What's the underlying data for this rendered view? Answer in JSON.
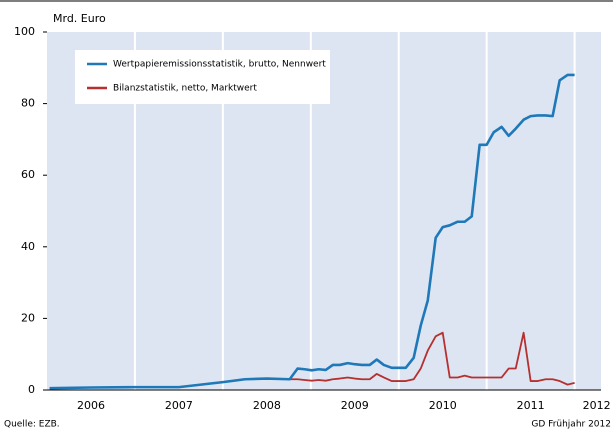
{
  "chart_data": {
    "type": "line",
    "ylabel": "Mrd. Euro",
    "source": "Quelle: EZB.",
    "footer": "GD Frühjahr 2012",
    "x": [
      2006.03,
      2006.5,
      2007.0,
      2007.5,
      2007.75,
      2008.0,
      2008.25,
      2008.5,
      2008.76,
      2008.85,
      2008.93,
      2009.01,
      2009.09,
      2009.17,
      2009.25,
      2009.33,
      2009.42,
      2009.5,
      2009.58,
      2009.67,
      2009.75,
      2009.83,
      2009.92,
      2010.0,
      2010.08,
      2010.17,
      2010.25,
      2010.33,
      2010.42,
      2010.5,
      2010.58,
      2010.67,
      2010.75,
      2010.83,
      2010.92,
      2011.0,
      2011.08,
      2011.17,
      2011.25,
      2011.33,
      2011.42,
      2011.5,
      2011.58,
      2011.67,
      2011.75,
      2011.83,
      2011.92,
      2012.0
    ],
    "series": [
      {
        "name": "Wertpapieremissionsstatistik, brutto, Nennwert",
        "color": "#1f78b8",
        "values": [
          0.5,
          0.7,
          0.8,
          0.8,
          1.5,
          2.2,
          3,
          3.2,
          3,
          6,
          5.8,
          5.5,
          5.8,
          5.6,
          7,
          7,
          7.5,
          7.2,
          7,
          7,
          8.5,
          7,
          6.2,
          6.2,
          6.2,
          9,
          18,
          25,
          42.5,
          45.5,
          46,
          47,
          47,
          48.5,
          68.5,
          68.5,
          72,
          73.5,
          71,
          73,
          75.5,
          76.5,
          76.7,
          76.7,
          76.5,
          86.5,
          88,
          88
        ]
      },
      {
        "name": "Bilanzstatistik, netto, Marktwert",
        "color": "#b5302f",
        "values": [
          0.5,
          0.7,
          0.8,
          0.8,
          1.5,
          2.2,
          3,
          3.2,
          3,
          3,
          2.8,
          2.6,
          2.8,
          2.6,
          3,
          3.2,
          3.5,
          3.2,
          3,
          3,
          4.5,
          3.5,
          2.5,
          2.5,
          2.5,
          3,
          6,
          11,
          15,
          16,
          3.5,
          3.5,
          4,
          3.5,
          3.5,
          3.5,
          3.5,
          3.5,
          6,
          6,
          16,
          2.5,
          2.5,
          3,
          3,
          2.5,
          1.5,
          2
        ]
      }
    ],
    "xlim": [
      2006,
      2012.3
    ],
    "xticks": [
      {
        "value": 2006.5,
        "label": "2006"
      },
      {
        "value": 2007.5,
        "label": "2007"
      },
      {
        "value": 2008.5,
        "label": "2008"
      },
      {
        "value": 2009.5,
        "label": "2009"
      },
      {
        "value": 2010.5,
        "label": "2010"
      },
      {
        "value": 2011.5,
        "label": "2011"
      },
      {
        "value": 2012.25,
        "label": "2012"
      }
    ],
    "xgrid": [
      2007,
      2008,
      2009,
      2010,
      2011,
      2012
    ],
    "ylim": [
      0,
      100
    ],
    "yticks": [
      0,
      20,
      40,
      60,
      80,
      100
    ],
    "legend": "upper left"
  }
}
